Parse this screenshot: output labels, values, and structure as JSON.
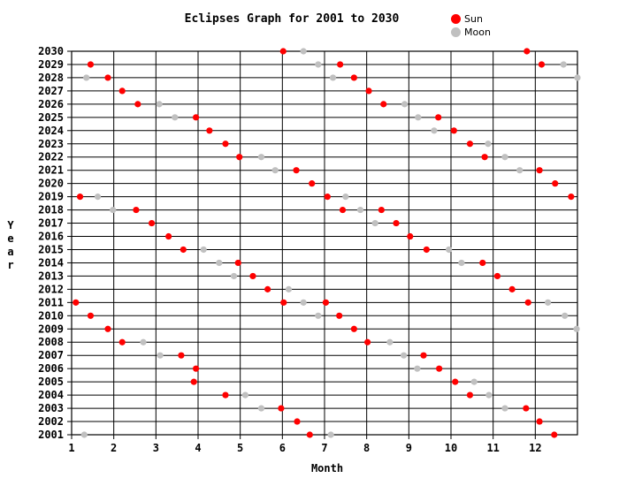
{
  "chart_data": {
    "type": "scatter",
    "title": "Eclipses Graph for 2001 to 2030",
    "xlabel": "Month",
    "ylabel": "Year",
    "xlim": [
      1,
      13
    ],
    "ylim": [
      2001,
      2030
    ],
    "x_ticks": [
      "1",
      "2",
      "3",
      "4",
      "5",
      "6",
      "7",
      "8",
      "9",
      "10",
      "11",
      "12"
    ],
    "y_ticks": [
      "2001",
      "2002",
      "2003",
      "2004",
      "2005",
      "2006",
      "2007",
      "2008",
      "2009",
      "2010",
      "2011",
      "2012",
      "2013",
      "2014",
      "2015",
      "2016",
      "2017",
      "2018",
      "2019",
      "2020",
      "2021",
      "2022",
      "2023",
      "2024",
      "2025",
      "2026",
      "2027",
      "2028",
      "2029",
      "2030"
    ],
    "grid": true,
    "legend_position": "top-right",
    "series": [
      {
        "name": "Sun",
        "color": "#ff0000",
        "points": [
          [
            6.65,
            2001
          ],
          [
            12.45,
            2001
          ],
          [
            6.35,
            2002
          ],
          [
            12.1,
            2002
          ],
          [
            5.97,
            2003
          ],
          [
            11.78,
            2003
          ],
          [
            4.65,
            2004
          ],
          [
            10.45,
            2004
          ],
          [
            3.9,
            2005
          ],
          [
            10.1,
            2005
          ],
          [
            3.95,
            2006
          ],
          [
            9.72,
            2006
          ],
          [
            3.6,
            2007
          ],
          [
            9.35,
            2007
          ],
          [
            2.2,
            2008
          ],
          [
            8.02,
            2008
          ],
          [
            1.86,
            2009
          ],
          [
            7.7,
            2009
          ],
          [
            1.45,
            2010
          ],
          [
            7.35,
            2010
          ],
          [
            1.1,
            2011
          ],
          [
            6.03,
            2011
          ],
          [
            7.03,
            2011
          ],
          [
            11.83,
            2011
          ],
          [
            5.65,
            2012
          ],
          [
            11.45,
            2012
          ],
          [
            5.3,
            2013
          ],
          [
            11.1,
            2013
          ],
          [
            4.95,
            2014
          ],
          [
            10.75,
            2014
          ],
          [
            3.65,
            2015
          ],
          [
            9.42,
            2015
          ],
          [
            3.3,
            2016
          ],
          [
            9.03,
            2016
          ],
          [
            2.9,
            2017
          ],
          [
            8.7,
            2017
          ],
          [
            2.53,
            2018
          ],
          [
            7.43,
            2018
          ],
          [
            8.35,
            2018
          ],
          [
            1.2,
            2019
          ],
          [
            7.07,
            2019
          ],
          [
            12.85,
            2019
          ],
          [
            6.7,
            2020
          ],
          [
            12.47,
            2020
          ],
          [
            6.33,
            2021
          ],
          [
            12.1,
            2021
          ],
          [
            4.98,
            2022
          ],
          [
            10.8,
            2022
          ],
          [
            4.65,
            2023
          ],
          [
            10.45,
            2023
          ],
          [
            4.27,
            2024
          ],
          [
            10.07,
            2024
          ],
          [
            3.95,
            2025
          ],
          [
            9.7,
            2025
          ],
          [
            2.57,
            2026
          ],
          [
            8.4,
            2026
          ],
          [
            2.2,
            2027
          ],
          [
            8.05,
            2027
          ],
          [
            1.86,
            2028
          ],
          [
            7.7,
            2028
          ],
          [
            1.45,
            2029
          ],
          [
            7.37,
            2029
          ],
          [
            12.15,
            2029
          ],
          [
            6.02,
            2030
          ],
          [
            11.8,
            2030
          ]
        ]
      },
      {
        "name": "Moon",
        "color": "#c0c0c0",
        "points": [
          [
            1.3,
            2001
          ],
          [
            7.15,
            2001
          ],
          [
            5.5,
            2003
          ],
          [
            11.28,
            2003
          ],
          [
            5.12,
            2004
          ],
          [
            10.9,
            2004
          ],
          [
            10.55,
            2005
          ],
          [
            9.2,
            2006
          ],
          [
            3.1,
            2007
          ],
          [
            8.88,
            2007
          ],
          [
            2.7,
            2008
          ],
          [
            8.55,
            2008
          ],
          [
            12.98,
            2009
          ],
          [
            6.85,
            2010
          ],
          [
            12.7,
            2010
          ],
          [
            6.5,
            2011
          ],
          [
            12.3,
            2011
          ],
          [
            6.15,
            2012
          ],
          [
            4.85,
            2013
          ],
          [
            4.5,
            2014
          ],
          [
            10.25,
            2014
          ],
          [
            4.13,
            2015
          ],
          [
            9.95,
            2015
          ],
          [
            8.2,
            2017
          ],
          [
            1.98,
            2018
          ],
          [
            7.85,
            2018
          ],
          [
            1.62,
            2019
          ],
          [
            7.5,
            2019
          ],
          [
            5.83,
            2021
          ],
          [
            11.63,
            2021
          ],
          [
            5.5,
            2022
          ],
          [
            11.28,
            2022
          ],
          [
            10.88,
            2023
          ],
          [
            9.6,
            2024
          ],
          [
            3.45,
            2025
          ],
          [
            9.22,
            2025
          ],
          [
            3.08,
            2026
          ],
          [
            8.9,
            2026
          ],
          [
            1.35,
            2028
          ],
          [
            7.2,
            2028
          ],
          [
            13.0,
            2028
          ],
          [
            6.85,
            2029
          ],
          [
            12.67,
            2029
          ],
          [
            6.5,
            2030
          ]
        ]
      }
    ]
  }
}
